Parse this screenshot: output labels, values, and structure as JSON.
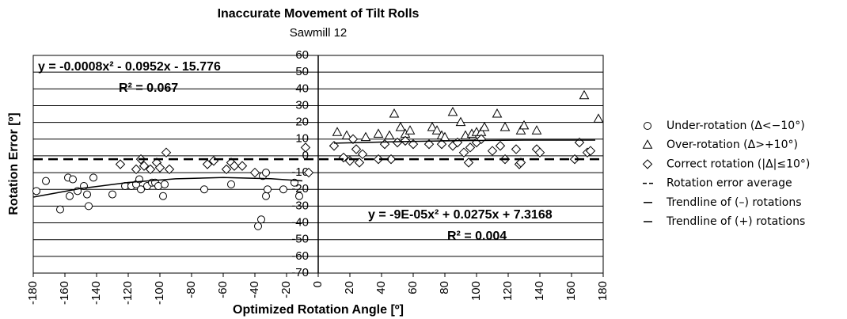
{
  "chart_data": {
    "type": "scatter",
    "title": "Inaccurate Movement of Tilt Rolls",
    "subtitle": "Sawmill 12",
    "x_label": "Optimized Rotation Angle [º]",
    "y_label": "Rotation Error [º]",
    "annotations": [
      "y = -0.0008x² - 0.0952x - 15.776",
      "R² = 0.067",
      "y = -9E-05x² + 0.0275x + 7.3168",
      "R² = 0.004"
    ],
    "xlim": [
      -180,
      180
    ],
    "ylim": [
      -70,
      60
    ],
    "xticks": [
      -180,
      -160,
      -140,
      -120,
      -100,
      -80,
      -60,
      -40,
      -20,
      0,
      20,
      40,
      60,
      80,
      100,
      120,
      140,
      160,
      180
    ],
    "yticks": [
      -70,
      -60,
      -50,
      -40,
      -30,
      -20,
      -10,
      0,
      10,
      20,
      30,
      40,
      50,
      60
    ],
    "grid": true,
    "legend": "right",
    "series": [
      {
        "name": "Under-rotation (Δ<−10°)",
        "marker": "circle",
        "color": "#000000",
        "x": [
          -178,
          -172,
          -163,
          -158,
          -157,
          -155,
          -152,
          -148,
          -146,
          -145,
          -142,
          -130,
          -122,
          -118,
          -115,
          -113,
          -112,
          -108,
          -105,
          -103,
          -101,
          -98,
          -97,
          -72,
          -55,
          -38,
          -36,
          -33,
          -35,
          -33,
          -32,
          -22,
          -15,
          -12
        ],
        "values": [
          -21,
          -15,
          -32,
          -13,
          -24,
          -14,
          -21,
          -18,
          -23,
          -30,
          -13,
          -23,
          -18,
          -18,
          -17,
          -14,
          -20,
          -18,
          -16,
          -16,
          -18,
          -24,
          -17,
          -20,
          -17,
          -42,
          -38,
          -24,
          -12,
          -10,
          -20,
          -20,
          -16,
          -24
        ]
      },
      {
        "name": "Over-rotation (Δ>+10°)",
        "marker": "triangle",
        "color": "#000000",
        "x": [
          12,
          18,
          30,
          38,
          45,
          48,
          52,
          55,
          58,
          72,
          75,
          78,
          80,
          85,
          90,
          93,
          97,
          100,
          103,
          105,
          113,
          118,
          128,
          130,
          138,
          168,
          177
        ],
        "values": [
          14,
          12,
          11,
          13,
          12,
          25,
          17,
          13,
          15,
          17,
          15,
          12,
          11,
          26,
          20,
          12,
          13,
          14,
          14,
          17,
          25,
          17,
          15,
          18,
          15,
          36,
          22
        ]
      },
      {
        "name": "Correct rotation (|Δ|≤10°)",
        "marker": "diamond",
        "color": "#000000",
        "x": [
          -125,
          -115,
          -112,
          -110,
          -106,
          -102,
          -100,
          -96,
          -94,
          -70,
          -66,
          -58,
          -55,
          -53,
          -48,
          -40,
          -8,
          -6,
          10,
          16,
          20,
          22,
          24,
          26,
          28,
          38,
          42,
          46,
          50,
          55,
          60,
          70,
          78,
          85,
          88,
          92,
          95,
          96,
          100,
          103,
          110,
          115,
          118,
          125,
          127,
          128,
          138,
          140,
          162,
          165,
          170,
          172
        ],
        "values": [
          -5,
          -8,
          -2,
          -6,
          -8,
          -4,
          -7,
          2,
          -8,
          -5,
          -3,
          -8,
          -4,
          -6,
          -6,
          -10,
          5,
          -10,
          6,
          -1,
          -3,
          10,
          4,
          -4,
          1,
          -2,
          7,
          -2,
          8,
          9,
          7,
          7,
          7,
          6,
          8,
          2,
          -4,
          5,
          8,
          10,
          3,
          6,
          -2,
          4,
          -5,
          -4,
          4,
          2,
          -2,
          8,
          2,
          3
        ]
      },
      {
        "name": "Rotation error average",
        "marker": "dash",
        "color": "#000000",
        "x": [
          -180,
          180
        ],
        "values": [
          -2,
          -2
        ]
      },
      {
        "name": "Trendline of (–) rotations",
        "marker": "line",
        "color": "#000000",
        "x": [
          -180,
          -150,
          -120,
          -90,
          -60,
          -30,
          -10
        ],
        "values": [
          -24.6,
          -19.5,
          -15.9,
          -13.7,
          -12.9,
          -13.6,
          -14.9
        ]
      },
      {
        "name": "Trendline of (+) rotations",
        "marker": "line",
        "color": "#000000",
        "x": [
          10,
          50,
          90,
          130,
          175
        ],
        "values": [
          7.6,
          8.5,
          9.1,
          9.4,
          9.4
        ]
      }
    ]
  }
}
